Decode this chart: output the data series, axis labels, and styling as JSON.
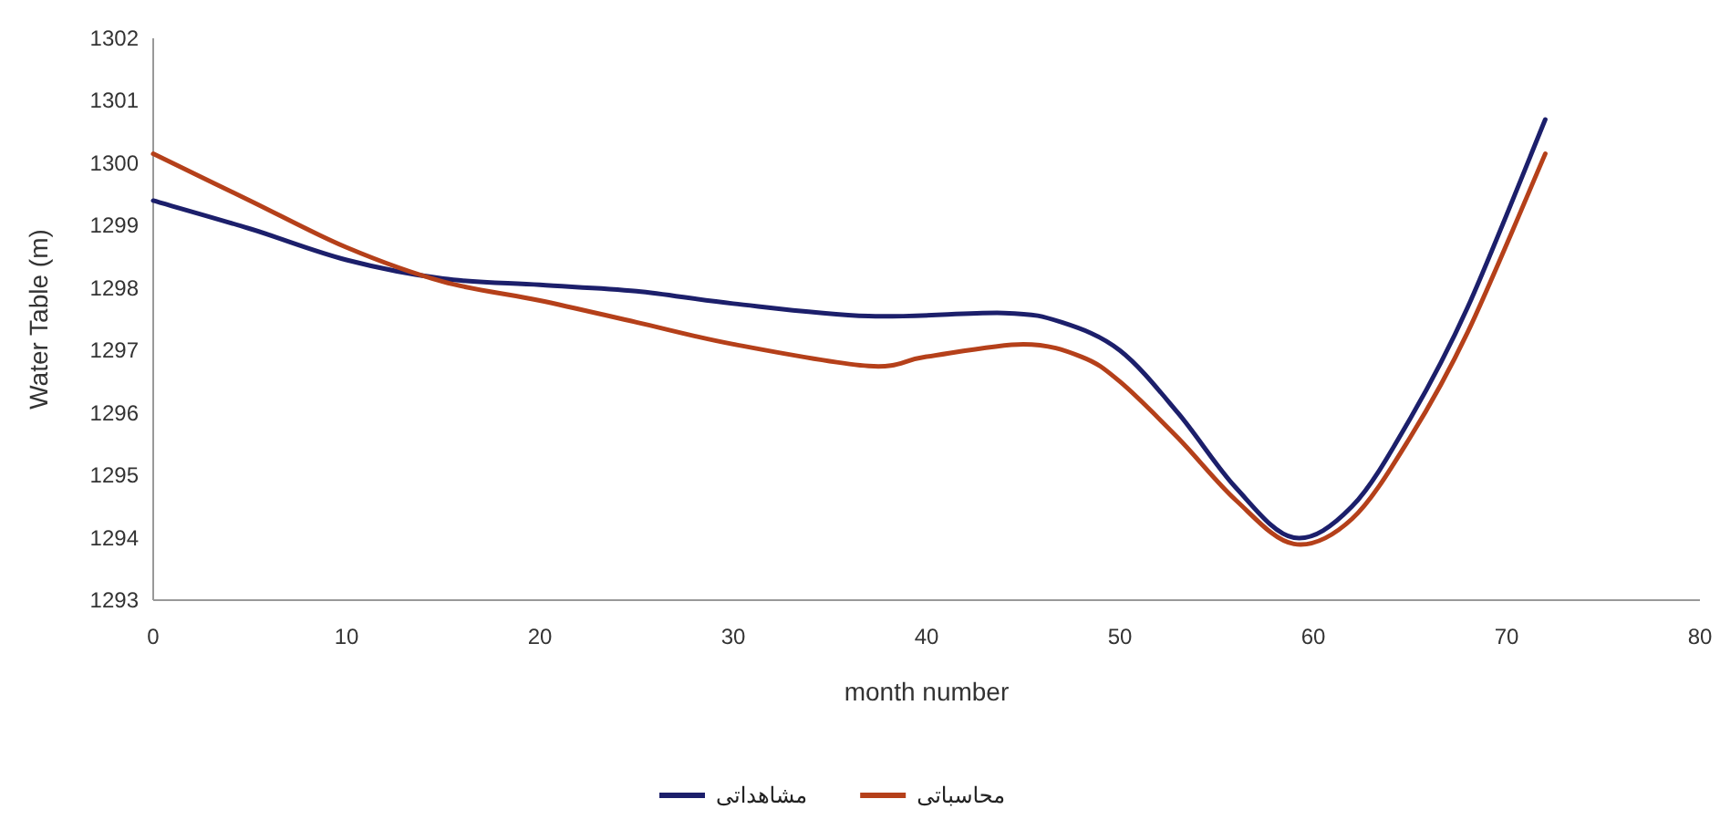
{
  "chart_data": {
    "type": "line",
    "xlabel": "month number",
    "ylabel": "Water Table (m)",
    "xlim": [
      0,
      80
    ],
    "xticks": [
      0,
      10,
      20,
      30,
      40,
      50,
      60,
      70,
      80
    ],
    "ylim": [
      1293,
      1302
    ],
    "yticks": [
      1293,
      1294,
      1295,
      1296,
      1297,
      1298,
      1299,
      1300,
      1301,
      1302
    ],
    "grid": false,
    "legend": "bottom",
    "line_style": "solid",
    "marker": "none",
    "series": [
      {
        "name": "مشاهداتی",
        "color": "#1c1f6b",
        "x": [
          0,
          5,
          10,
          15,
          20,
          25,
          30,
          37,
          44,
          47,
          50,
          53,
          56,
          59,
          62,
          65,
          68,
          72
        ],
        "values": [
          1299.4,
          1298.95,
          1298.45,
          1298.15,
          1298.05,
          1297.95,
          1297.75,
          1297.55,
          1297.6,
          1297.45,
          1297.0,
          1296.0,
          1294.8,
          1294.0,
          1294.5,
          1295.9,
          1297.7,
          1300.7
        ]
      },
      {
        "name": "محاسباتی",
        "color": "#b5401a",
        "x": [
          0,
          5,
          10,
          15,
          20,
          25,
          30,
          37,
          40,
          45,
          48,
          50,
          53,
          56,
          59,
          62,
          65,
          68,
          72
        ],
        "values": [
          1300.15,
          1299.4,
          1298.65,
          1298.1,
          1297.8,
          1297.45,
          1297.1,
          1296.75,
          1296.9,
          1297.1,
          1296.9,
          1296.5,
          1295.6,
          1294.6,
          1293.9,
          1294.3,
          1295.6,
          1297.3,
          1300.15
        ]
      }
    ]
  }
}
